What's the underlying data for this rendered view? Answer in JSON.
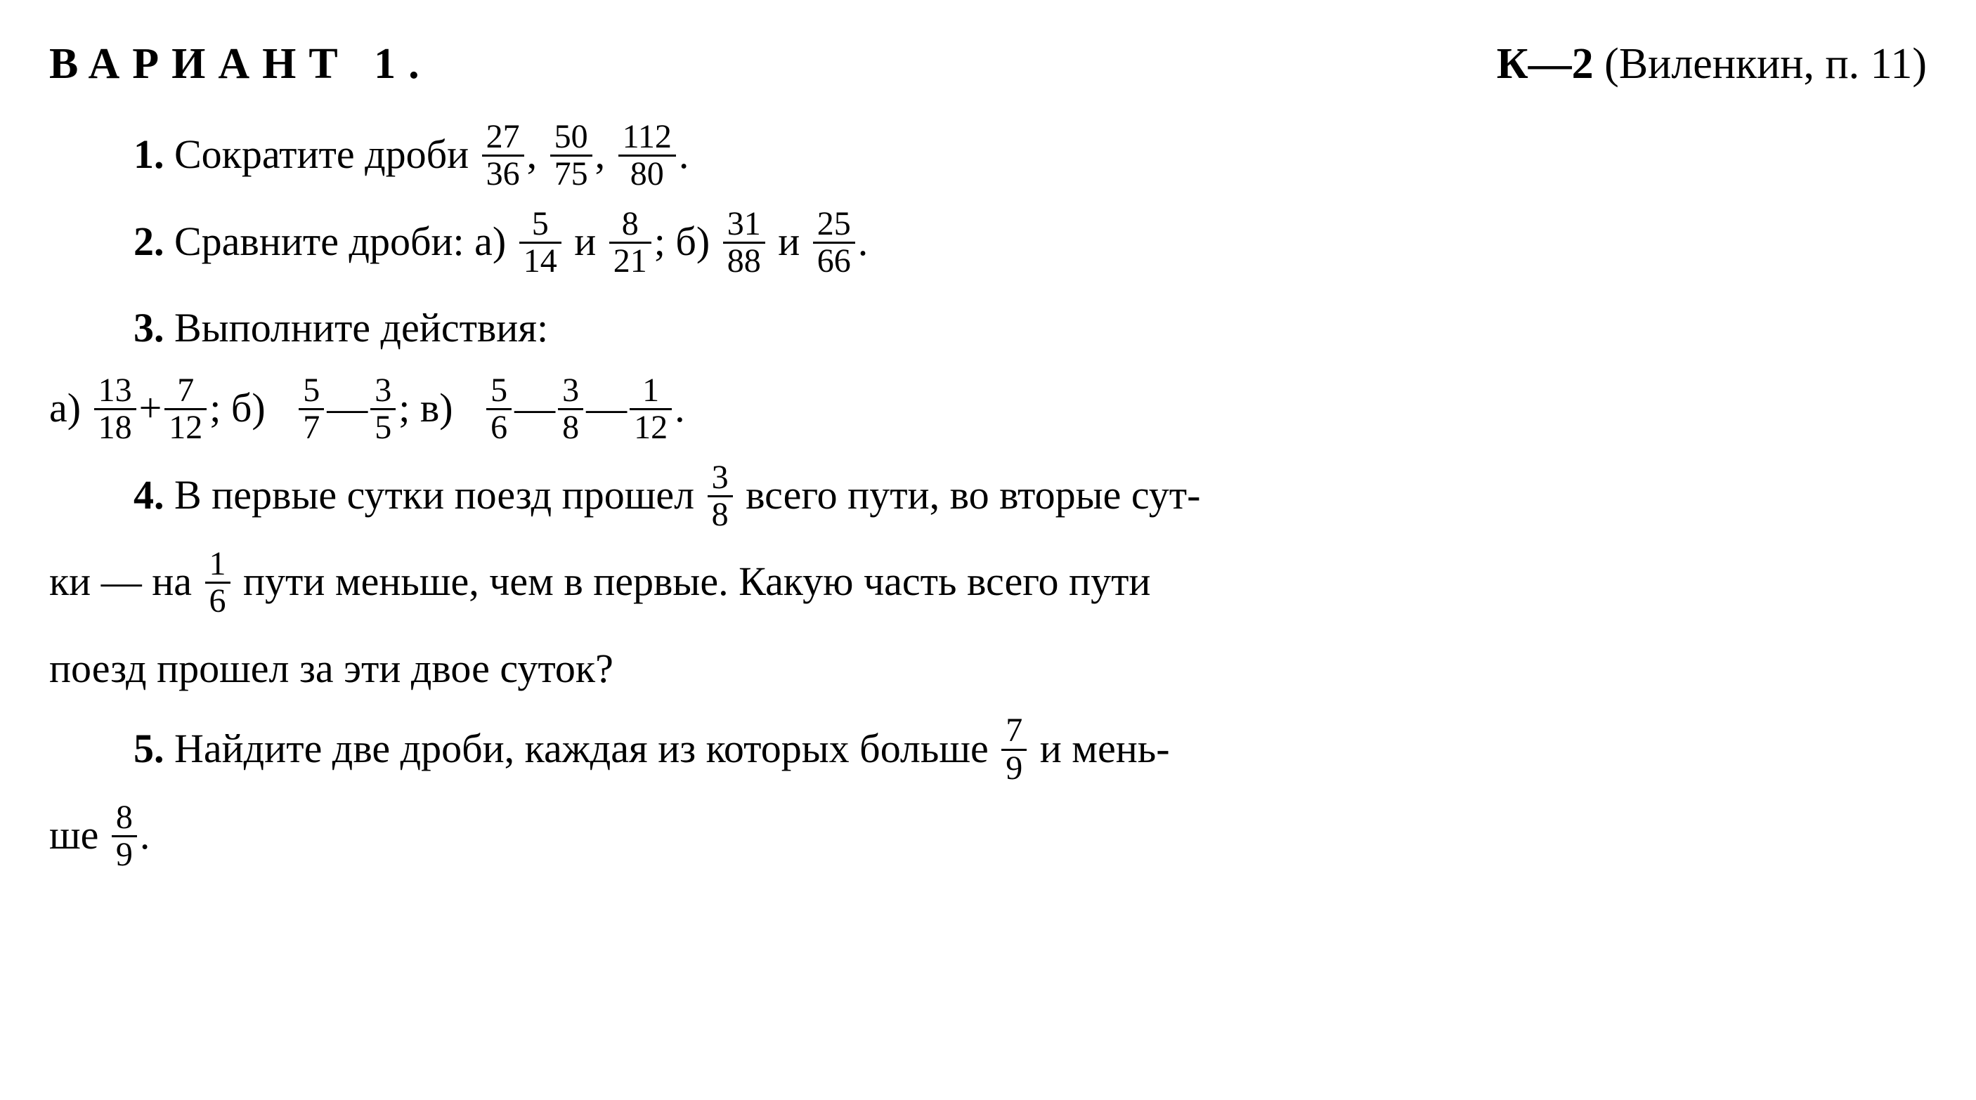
{
  "header": {
    "variant": "ВАРИАНТ 1.",
    "right_bold": "К—2",
    "right_paren": "(Виленкин, п. 11)"
  },
  "p1": {
    "num": "1.",
    "text1": "Сократите дроби",
    "f1n": "27",
    "f1d": "36",
    "f2n": "50",
    "f2d": "75",
    "f3n": "112",
    "f3d": "80",
    "dot": "."
  },
  "p2": {
    "num": "2.",
    "text1": "Сравните дроби: а)",
    "f1n": "5",
    "f1d": "14",
    "and1": "и",
    "f2n": "8",
    "f2d": "21",
    "sep1": "; б)",
    "f3n": "31",
    "f3d": "88",
    "and2": "и",
    "f4n": "25",
    "f4d": "66",
    "dot": "."
  },
  "p3": {
    "num": "3.",
    "text1": "Выполните действия:",
    "a": "а)",
    "f1n": "13",
    "f1d": "18",
    "plus": "+",
    "f2n": "7",
    "f2d": "12",
    "sep1": "; б)",
    "f3n": "5",
    "f3d": "7",
    "minus1": "—",
    "f4n": "3",
    "f4d": "5",
    "sep2": "; в)",
    "f5n": "5",
    "f5d": "6",
    "minus2": "—",
    "f6n": "3",
    "f6d": "8",
    "minus3": "—",
    "f7n": "1",
    "f7d": "12",
    "dot": "."
  },
  "p4": {
    "num": "4.",
    "t1": "В первые сутки поезд прошел",
    "f1n": "3",
    "f1d": "8",
    "t2": "всего пути, во вторые сут-",
    "t3": "ки — на",
    "f2n": "1",
    "f2d": "6",
    "t4": "пути меньше, чем в первые. Какую часть всего пути",
    "t5": "поезд прошел за эти двое суток?"
  },
  "p5": {
    "num": "5.",
    "t1": "Найдите две дроби, каждая из которых больше",
    "f1n": "7",
    "f1d": "9",
    "t2": "и мень-",
    "t3": "ше",
    "f2n": "8",
    "f2d": "9",
    "dot": "."
  }
}
